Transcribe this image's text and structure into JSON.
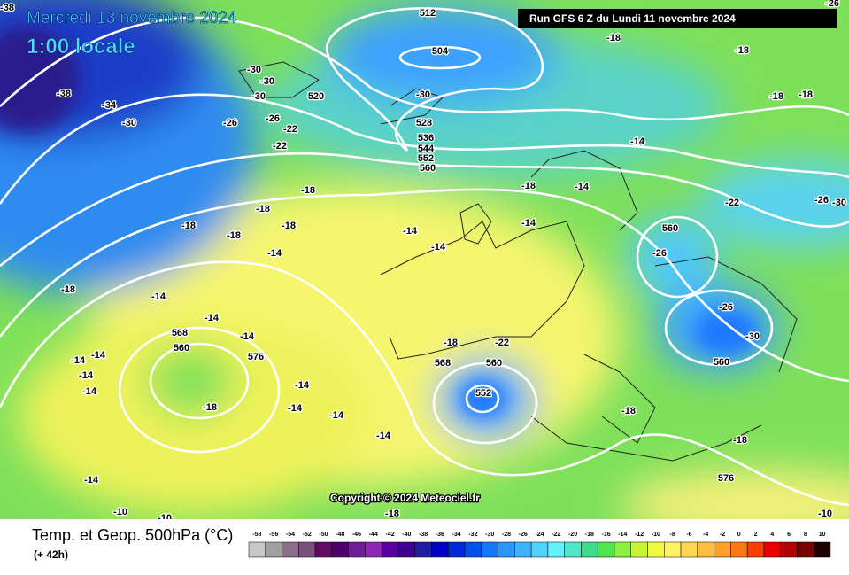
{
  "header": {
    "title": "Mercredi 13 novembre 2024",
    "time": "1:00 locale",
    "run": "Run GFS 6 Z du Lundi 11 novembre 2024"
  },
  "copyright": "Copyright © 2024 Meteociel.fr",
  "map": {
    "labels": [
      512,
      504,
      520,
      528,
      536,
      544,
      552,
      560,
      568,
      560,
      576,
      568,
      560,
      552,
      560,
      560,
      576,
      -38,
      -34,
      -30,
      -38,
      -30,
      -30,
      -30,
      -26,
      -26,
      -22,
      -22,
      -30,
      -18,
      -18,
      -18,
      -18,
      -18,
      -18,
      -18,
      -18,
      -18,
      -18,
      -14,
      -14,
      -14,
      -14,
      -14,
      -14,
      -14,
      -14,
      -14,
      -18,
      -14,
      -14,
      -14,
      -14,
      -18,
      -14,
      -14,
      -14,
      -14,
      -14,
      -18,
      -22,
      -22,
      -26,
      -26,
      -30,
      -26,
      -30,
      -18,
      -18,
      -10,
      -10,
      -18,
      -10,
      -26
    ]
  },
  "footer": {
    "title": "Temp. et Geop. 500hPa (°C)",
    "lead": "(+ 42h)",
    "scale": {
      "values": [
        -58,
        -56,
        -54,
        -52,
        -50,
        -48,
        -46,
        -44,
        -42,
        -40,
        -38,
        -36,
        -34,
        -32,
        -30,
        -28,
        -26,
        -24,
        -22,
        -20,
        -18,
        -16,
        -14,
        -12,
        -10,
        -8,
        -6,
        -4,
        -2,
        0,
        2,
        4,
        6,
        8,
        10
      ],
      "colors": [
        "#c8c8c8",
        "#a0a0a0",
        "#8c6e8c",
        "#78507a",
        "#640a64",
        "#50006e",
        "#6e1e96",
        "#8c28b4",
        "#5a00a0",
        "#3c0096",
        "#1e1ea0",
        "#0000c8",
        "#0028dc",
        "#0050f0",
        "#1478ff",
        "#2896ff",
        "#3cb4ff",
        "#50d2ff",
        "#64f0ff",
        "#50e6c8",
        "#3cdc8c",
        "#50e650",
        "#8cf03c",
        "#c8f532",
        "#f0fa3c",
        "#fff064",
        "#ffd750",
        "#ffbe3c",
        "#ffa028",
        "#ff7814",
        "#ff3c00",
        "#e60000",
        "#b40000",
        "#780000",
        "#1e0000"
      ]
    }
  }
}
